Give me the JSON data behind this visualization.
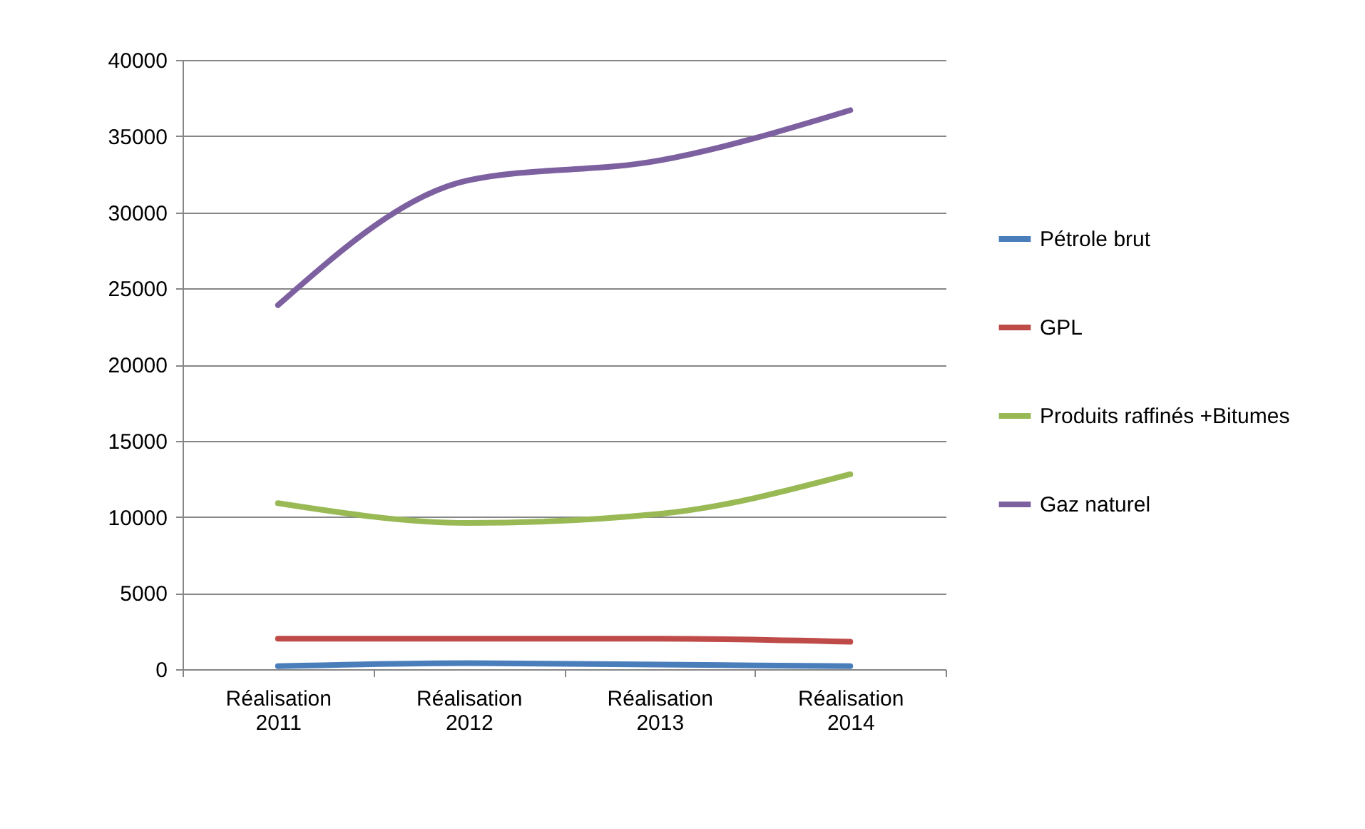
{
  "chart_data": {
    "type": "line",
    "categories": [
      "Réalisation 2011",
      "Réalisation 2012",
      "Réalisation 2013",
      "Réalisation 2014"
    ],
    "series": [
      {
        "name": "Pétrole brut",
        "color": "#4a7ebb",
        "values": [
          200,
          400,
          300,
          200
        ]
      },
      {
        "name": "GPL",
        "color": "#be4b48",
        "values": [
          2000,
          2000,
          2000,
          1800
        ]
      },
      {
        "name": "Produits raffinés +Bitumes",
        "color": "#98b954",
        "values": [
          10900,
          9600,
          10200,
          12800
        ]
      },
      {
        "name": "Gaz naturel",
        "color": "#7d60a0",
        "values": [
          23900,
          32100,
          33400,
          36700
        ]
      }
    ],
    "ylim": [
      0,
      40000
    ],
    "yticks": [
      0,
      5000,
      10000,
      15000,
      20000,
      25000,
      30000,
      35000,
      40000
    ],
    "grid": "y",
    "legend": "right",
    "marker": "none",
    "line_style": "solid"
  }
}
